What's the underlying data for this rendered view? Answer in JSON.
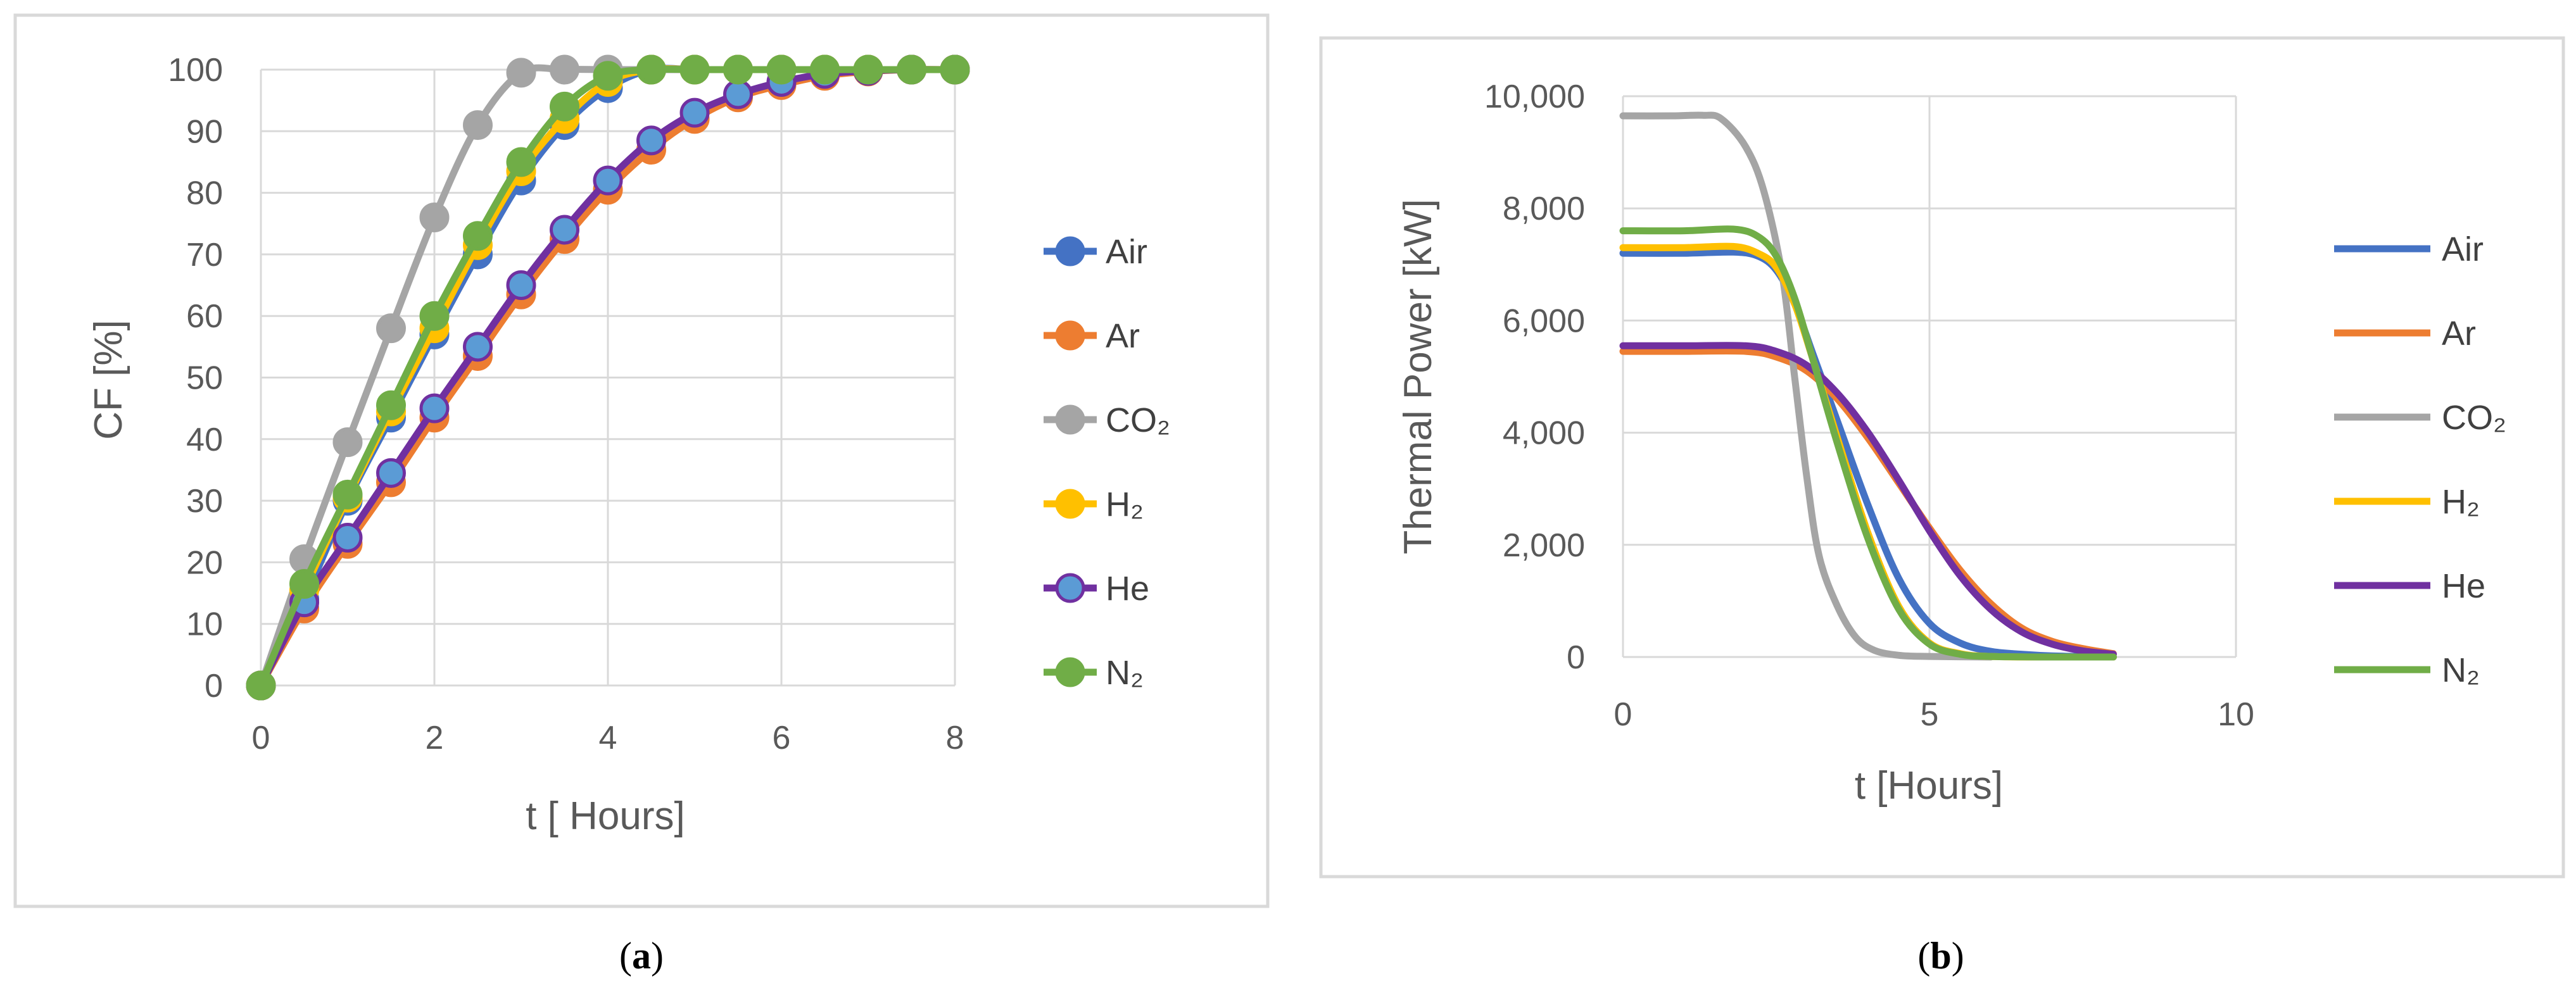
{
  "colors": {
    "Air": "#4472C4",
    "Ar": "#ED7D31",
    "CO2": "#A5A5A5",
    "H2": "#FFC000",
    "He": "#7030A0",
    "He_marker_fill": "#5B9BD5",
    "N2": "#70AD47",
    "grid": "#d9d9d9",
    "frame": "#d9d9d9"
  },
  "chart_data": [
    {
      "type": "line",
      "panel_label": "a",
      "title": "",
      "xlabel": "t [ Hours]",
      "ylabel": "CF [%]",
      "xlim": [
        0,
        8
      ],
      "ylim": [
        0,
        100
      ],
      "xticks": [
        "0",
        "2",
        "4",
        "6",
        "8"
      ],
      "yticks": [
        "0",
        "10",
        "20",
        "30",
        "40",
        "50",
        "60",
        "70",
        "80",
        "90",
        "100"
      ],
      "markers": true,
      "x": [
        0,
        0.5,
        1,
        1.5,
        2,
        2.5,
        3,
        3.5,
        4,
        4.5,
        5,
        5.5,
        6,
        6.5,
        7,
        7.5,
        8
      ],
      "series": [
        {
          "name": "Air",
          "legend": "Air",
          "values": [
            0,
            14,
            30,
            43.5,
            57,
            70,
            82,
            91,
            97,
            100,
            100,
            100,
            100,
            100,
            100,
            100,
            100
          ]
        },
        {
          "name": "Ar",
          "legend": "Ar",
          "values": [
            0,
            12.5,
            23,
            33,
            43.5,
            53.5,
            63.5,
            72.5,
            80.5,
            87,
            92,
            95.5,
            97.5,
            99,
            99.7,
            100,
            100
          ]
        },
        {
          "name": "CO2",
          "legend": "CO₂",
          "values": [
            0,
            20.5,
            39.5,
            58,
            76,
            91,
            99.5,
            100,
            100,
            100,
            100,
            100,
            100,
            100,
            100,
            100,
            100
          ]
        },
        {
          "name": "H2",
          "legend": "H₂",
          "values": [
            0,
            15.5,
            30.5,
            44.5,
            58,
            71.5,
            83.5,
            92,
            98,
            100,
            100,
            100,
            100,
            100,
            100,
            100,
            100
          ]
        },
        {
          "name": "He",
          "legend": "He",
          "values": [
            0,
            13.5,
            24,
            34.5,
            45,
            55,
            65,
            74,
            82,
            88.5,
            93,
            96,
            98,
            99.3,
            99.8,
            100,
            100
          ]
        },
        {
          "name": "N2",
          "legend": "N₂",
          "values": [
            0,
            16.5,
            31,
            45.5,
            60,
            73,
            85,
            94,
            99,
            100,
            100,
            100,
            100,
            100,
            100,
            100,
            100
          ]
        }
      ]
    },
    {
      "type": "line",
      "panel_label": "b",
      "title": "",
      "xlabel": "t [Hours]",
      "ylabel": "Thermal Power [kW]",
      "xlim": [
        0,
        10
      ],
      "ylim": [
        0,
        10000
      ],
      "xticks": [
        "0",
        "5",
        "10"
      ],
      "yticks": [
        "0",
        "2,000",
        "4,000",
        "6,000",
        "8,000",
        "10,000"
      ],
      "markers": false,
      "series": [
        {
          "name": "Air",
          "legend": "Air",
          "x": [
            0,
            1,
            1.8,
            2.2,
            2.5,
            2.8,
            3.1,
            3.5,
            4,
            4.5,
            5,
            5.5,
            6,
            6.5,
            7,
            8
          ],
          "values": [
            7200,
            7200,
            7220,
            7150,
            6900,
            6300,
            5400,
            4200,
            2700,
            1400,
            600,
            250,
            100,
            50,
            20,
            0
          ]
        },
        {
          "name": "Ar",
          "legend": "Ar",
          "x": [
            0,
            1,
            2,
            2.5,
            3,
            3.5,
            4,
            4.5,
            5,
            5.5,
            6,
            6.5,
            7,
            7.5,
            8
          ],
          "values": [
            5450,
            5450,
            5450,
            5350,
            5100,
            4600,
            3900,
            3100,
            2300,
            1550,
            950,
            520,
            280,
            150,
            60
          ]
        },
        {
          "name": "CO2",
          "legend": "CO₂",
          "x": [
            0,
            0.8,
            1.3,
            1.6,
            2,
            2.3,
            2.6,
            2.8,
            3,
            3.2,
            3.5,
            3.8,
            4.1,
            4.5,
            5,
            6
          ],
          "values": [
            9650,
            9650,
            9660,
            9600,
            9100,
            8300,
            6800,
            5000,
            3200,
            1800,
            900,
            350,
            120,
            30,
            10,
            0
          ]
        },
        {
          "name": "H2",
          "legend": "H₂",
          "x": [
            0,
            1,
            1.8,
            2.2,
            2.5,
            2.8,
            3.1,
            3.5,
            4,
            4.5,
            5,
            5.5,
            6,
            7,
            8
          ],
          "values": [
            7300,
            7300,
            7320,
            7200,
            6950,
            6300,
            5300,
            3900,
            2200,
            900,
            250,
            60,
            10,
            0,
            0
          ]
        },
        {
          "name": "He",
          "legend": "He",
          "x": [
            0,
            1,
            2,
            2.5,
            3,
            3.5,
            4,
            4.5,
            5,
            5.5,
            6,
            6.5,
            7,
            7.5,
            8
          ],
          "values": [
            5550,
            5550,
            5550,
            5450,
            5200,
            4700,
            4000,
            3150,
            2250,
            1450,
            850,
            450,
            230,
            110,
            50
          ]
        },
        {
          "name": "N2",
          "legend": "N₂",
          "x": [
            0,
            1,
            1.8,
            2.2,
            2.5,
            2.8,
            3.1,
            3.5,
            4,
            4.5,
            5,
            5.5,
            6,
            7,
            8
          ],
          "values": [
            7600,
            7600,
            7630,
            7500,
            7150,
            6400,
            5300,
            3800,
            2100,
            850,
            230,
            50,
            10,
            0,
            0
          ]
        }
      ]
    }
  ]
}
